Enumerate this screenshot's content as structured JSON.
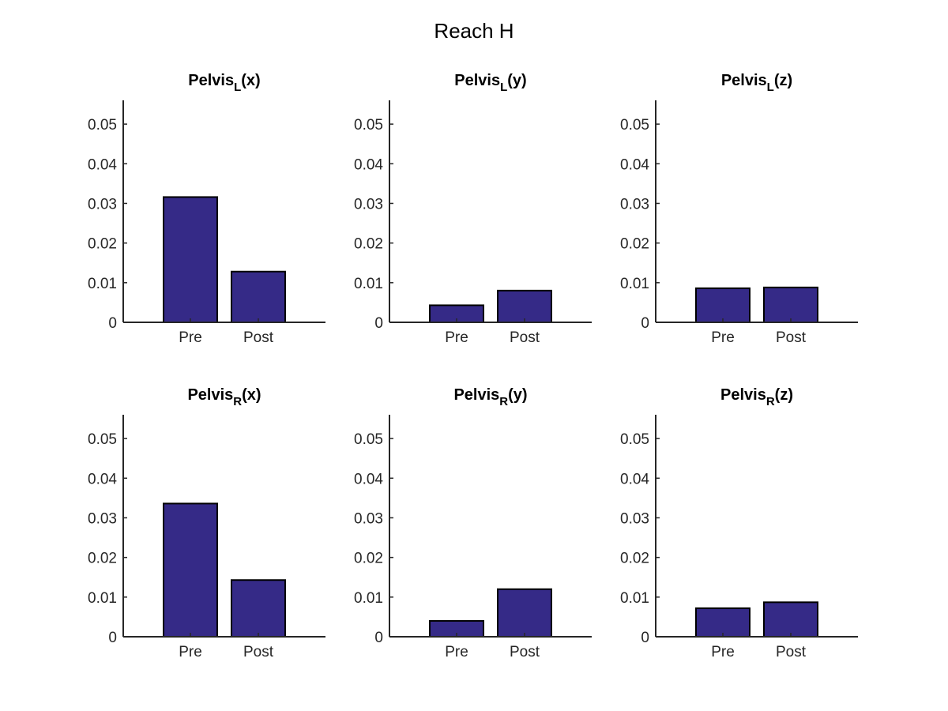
{
  "figure": {
    "title": "Reach H",
    "bar_color": "#352A87",
    "axis_color": "#262626"
  },
  "chart_data": [
    {
      "type": "bar",
      "title_main": "Pelvis",
      "title_sub": "L",
      "title_suffix": "(x)",
      "categories": [
        "Pre",
        "Post"
      ],
      "values": [
        0.0316,
        0.0128
      ],
      "ylim": [
        0,
        0.056
      ],
      "yticks": [
        "0",
        "0.01",
        "0.02",
        "0.03",
        "0.04",
        "0.05"
      ],
      "ytick_values": [
        0,
        0.01,
        0.02,
        0.03,
        0.04,
        0.05
      ]
    },
    {
      "type": "bar",
      "title_main": "Pelvis",
      "title_sub": "L",
      "title_suffix": "(y)",
      "categories": [
        "Pre",
        "Post"
      ],
      "values": [
        0.0043,
        0.008
      ],
      "ylim": [
        0,
        0.056
      ],
      "yticks": [
        "0",
        "0.01",
        "0.02",
        "0.03",
        "0.04",
        "0.05"
      ],
      "ytick_values": [
        0,
        0.01,
        0.02,
        0.03,
        0.04,
        0.05
      ]
    },
    {
      "type": "bar",
      "title_main": "Pelvis",
      "title_sub": "L",
      "title_suffix": "(z)",
      "categories": [
        "Pre",
        "Post"
      ],
      "values": [
        0.0086,
        0.0088
      ],
      "ylim": [
        0,
        0.056
      ],
      "yticks": [
        "0",
        "0.01",
        "0.02",
        "0.03",
        "0.04",
        "0.05"
      ],
      "ytick_values": [
        0,
        0.01,
        0.02,
        0.03,
        0.04,
        0.05
      ]
    },
    {
      "type": "bar",
      "title_main": "Pelvis",
      "title_sub": "R",
      "title_suffix": "(x)",
      "categories": [
        "Pre",
        "Post"
      ],
      "values": [
        0.0336,
        0.0143
      ],
      "ylim": [
        0,
        0.056
      ],
      "yticks": [
        "0",
        "0.01",
        "0.02",
        "0.03",
        "0.04",
        "0.05"
      ],
      "ytick_values": [
        0,
        0.01,
        0.02,
        0.03,
        0.04,
        0.05
      ]
    },
    {
      "type": "bar",
      "title_main": "Pelvis",
      "title_sub": "R",
      "title_suffix": "(y)",
      "categories": [
        "Pre",
        "Post"
      ],
      "values": [
        0.004,
        0.012
      ],
      "ylim": [
        0,
        0.056
      ],
      "yticks": [
        "0",
        "0.01",
        "0.02",
        "0.03",
        "0.04",
        "0.05"
      ],
      "ytick_values": [
        0,
        0.01,
        0.02,
        0.03,
        0.04,
        0.05
      ]
    },
    {
      "type": "bar",
      "title_main": "Pelvis",
      "title_sub": "R",
      "title_suffix": "(z)",
      "categories": [
        "Pre",
        "Post"
      ],
      "values": [
        0.0072,
        0.0087
      ],
      "ylim": [
        0,
        0.056
      ],
      "yticks": [
        "0",
        "0.01",
        "0.02",
        "0.03",
        "0.04",
        "0.05"
      ],
      "ytick_values": [
        0,
        0.01,
        0.02,
        0.03,
        0.04,
        0.05
      ]
    }
  ]
}
